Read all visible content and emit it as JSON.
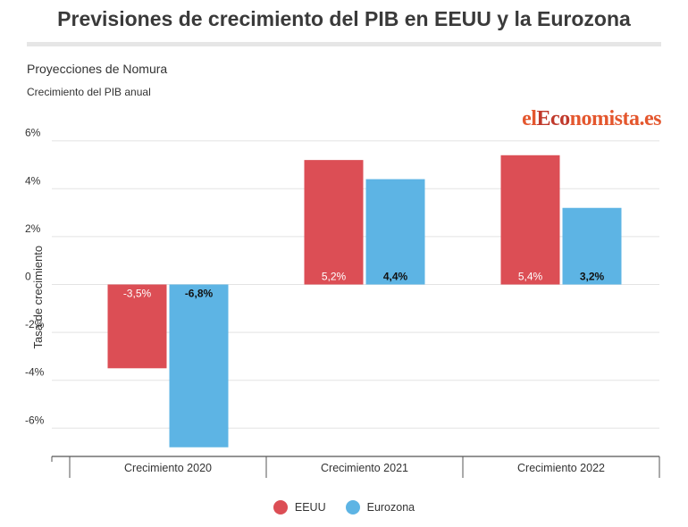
{
  "header": {
    "title": "Previsiones de crecimiento del PIB en EEUU y la Eurozona",
    "subtitle": "Proyecciones de Nomura",
    "caption": "Crecimiento del PIB anual"
  },
  "brand": {
    "part1": "el",
    "part2": "Eco",
    "part3": "nomista.es"
  },
  "colors": {
    "eeuu": "#dc4e55",
    "eurozona": "#5db4e4"
  },
  "chart_data": {
    "type": "bar",
    "title": "Previsiones de crecimiento del PIB en EEUU y la Eurozona",
    "subtitle": "Proyecciones de Nomura",
    "caption": "Crecimiento del PIB anual",
    "ylabel": "Tasa de crecimiento",
    "xlabel": "",
    "categories": [
      "Crecimiento 2020",
      "Crecimiento 2021",
      "Crecimiento 2022"
    ],
    "series": [
      {
        "name": "EEUU",
        "values": [
          -3.5,
          5.2,
          5.4
        ],
        "labels": [
          "-3,5%",
          "5,2%",
          "5,4%"
        ]
      },
      {
        "name": "Eurozona",
        "values": [
          -6.8,
          4.4,
          3.2
        ],
        "labels": [
          "-6,8%",
          "4,4%",
          "3,2%"
        ]
      }
    ],
    "yticks": [
      6,
      4,
      2,
      0,
      -2,
      -4,
      -6
    ],
    "ytick_labels": [
      "6%",
      "4%",
      "2%",
      "0",
      "-2%",
      "-4%",
      "-6%"
    ],
    "ylim": [
      -7.2,
      6.5
    ],
    "grid": true,
    "legend": "bottom-center"
  }
}
